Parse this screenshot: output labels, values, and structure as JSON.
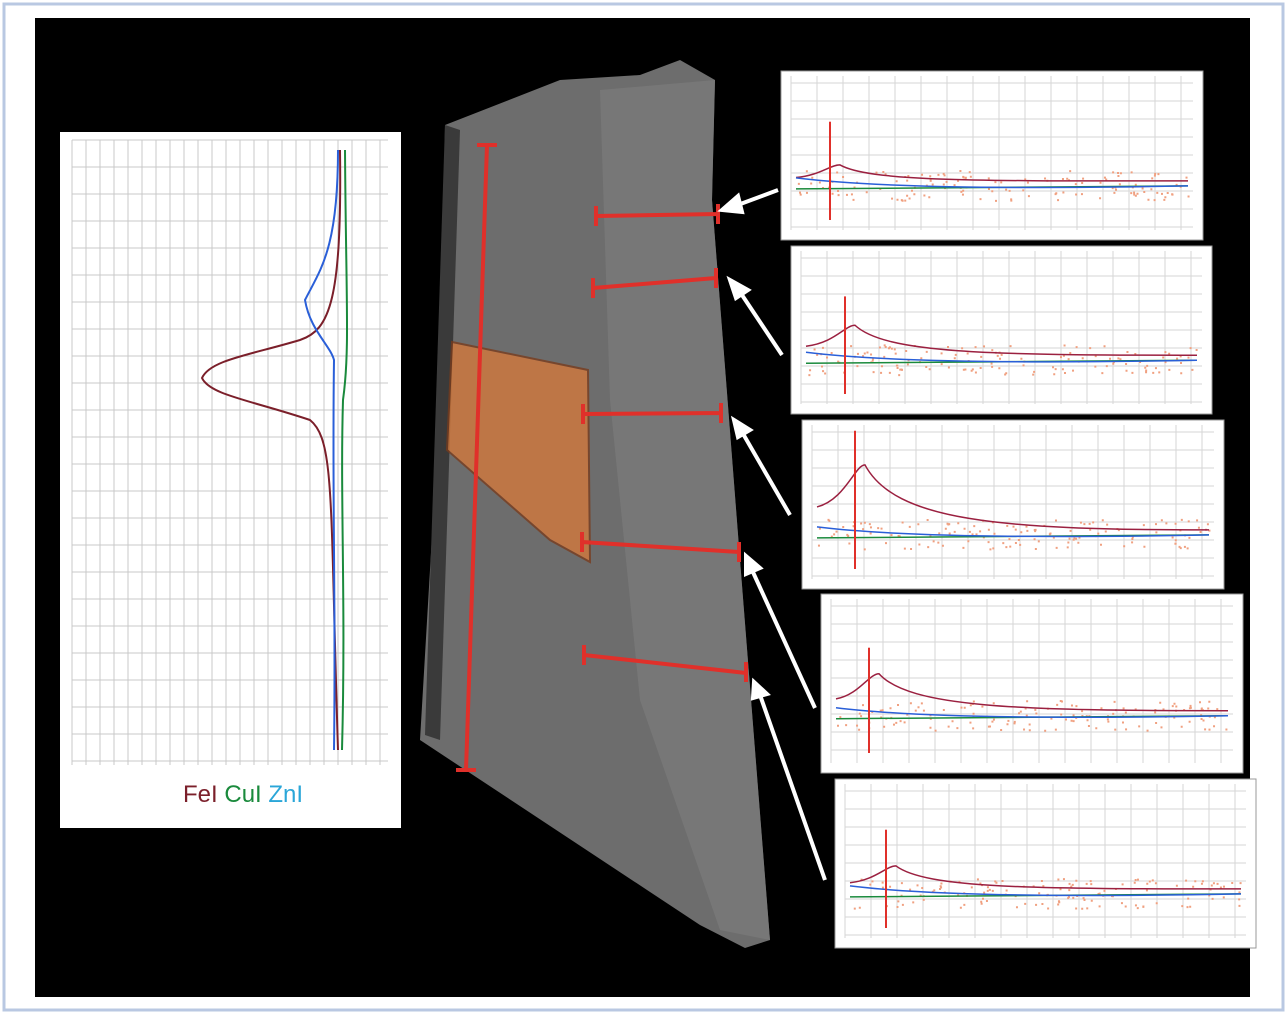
{
  "legend": {
    "items": [
      {
        "label": "FeI",
        "color": "#7b1f2a"
      },
      {
        "label": "CuI",
        "color": "#1a8a3c"
      },
      {
        "label": "ZnI",
        "color": "#2aa6d8"
      }
    ]
  }
}
